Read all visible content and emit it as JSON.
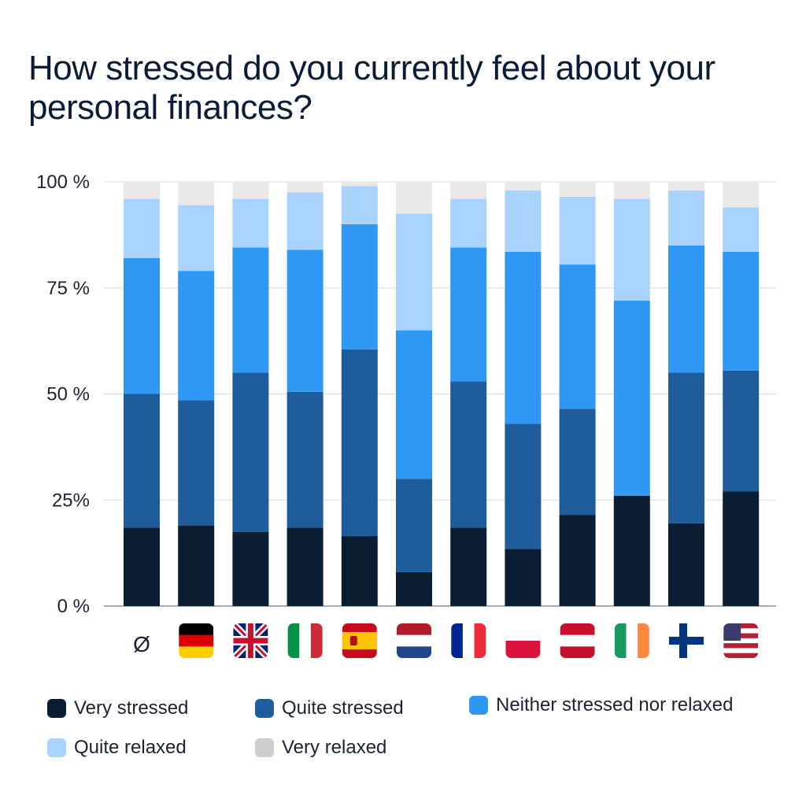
{
  "chart_data": {
    "type": "bar",
    "stacked": true,
    "title": "How stressed do you currently feel about your personal finances?",
    "yticks": [
      "0 %",
      "25%",
      "50 %",
      "75 %",
      "100 %"
    ],
    "ylim": [
      0,
      100
    ],
    "grid": true,
    "legend_position": "bottom",
    "categories": [
      {
        "label": "Ø",
        "flag": "average"
      },
      {
        "label": "",
        "flag": "de"
      },
      {
        "label": "",
        "flag": "gb"
      },
      {
        "label": "",
        "flag": "it"
      },
      {
        "label": "",
        "flag": "es"
      },
      {
        "label": "",
        "flag": "nl"
      },
      {
        "label": "",
        "flag": "fr"
      },
      {
        "label": "",
        "flag": "pl"
      },
      {
        "label": "",
        "flag": "at"
      },
      {
        "label": "",
        "flag": "ie"
      },
      {
        "label": "",
        "flag": "fi"
      },
      {
        "label": "",
        "flag": "us"
      }
    ],
    "series": [
      {
        "name": "Very stressed",
        "color": "#0b1d33",
        "values": [
          18.5,
          19,
          17.5,
          18.5,
          16.5,
          8,
          18.5,
          13.5,
          21.5,
          26,
          19.5,
          27
        ]
      },
      {
        "name": "Quite stressed",
        "color": "#1f5c9c",
        "values": [
          31.5,
          29.5,
          37.5,
          32,
          44,
          22,
          34.5,
          29.5,
          25,
          0,
          35.5,
          28.5
        ]
      },
      {
        "name": "Neither stressed nor relaxed",
        "color": "#2f97f4",
        "values": [
          32,
          30.5,
          29.5,
          33.5,
          29.5,
          35,
          31.5,
          40.5,
          34,
          46,
          30,
          28
        ]
      },
      {
        "name": "Quite relaxed",
        "color": "#a8d3fc",
        "values": [
          14,
          15.5,
          11.5,
          13.5,
          9,
          27.5,
          11.5,
          14.5,
          16,
          24,
          13,
          10.5
        ]
      },
      {
        "name": "Very relaxed",
        "color": "#ebe9e7",
        "values": [
          4,
          5.5,
          4,
          2.5,
          1,
          7.5,
          4,
          2,
          3.5,
          4,
          2,
          6
        ]
      }
    ]
  }
}
